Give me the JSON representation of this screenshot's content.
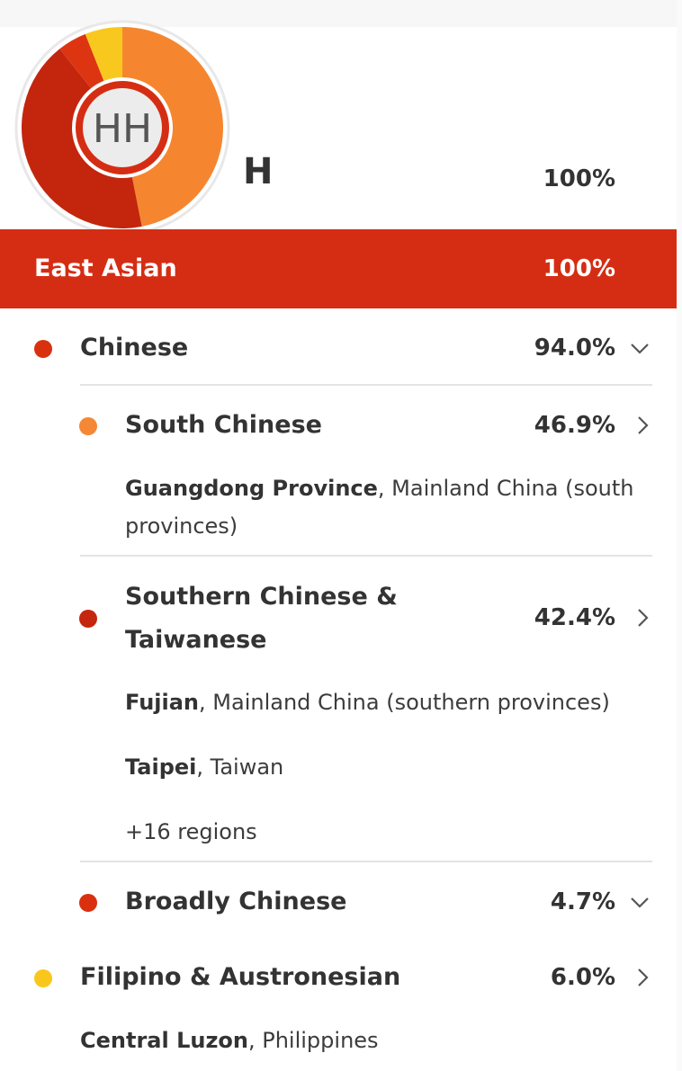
{
  "profile": {
    "initials": "HH",
    "name": "H",
    "percent": "100%",
    "ring_colors": {
      "south": "#f5862f",
      "southern_taiwanese": "#c3260d",
      "broadly": "#dd3512",
      "filipino": "#f9c81e",
      "ring_bg": "#e8e8e8"
    },
    "ring_fractions": {
      "south": 0.469,
      "southern_taiwanese": 0.424,
      "broadly": 0.047,
      "filipino": 0.06
    }
  },
  "banner": {
    "label": "East Asian",
    "percent": "100%",
    "color": "#d52d13"
  },
  "rows": {
    "chinese": {
      "label": "Chinese",
      "percent": "94.0%",
      "dot": "#d9310f",
      "chevron": "chevron-down-icon"
    },
    "south_chinese": {
      "label": "South Chinese",
      "percent": "46.9%",
      "dot": "#f48836",
      "chevron": "chevron-right-icon",
      "region1_bold": "Guangdong Province",
      "region1_rest": ", Mainland China (south",
      "region1_line2": "provinces)"
    },
    "southern_taiwanese": {
      "label_line1": "Southern Chinese &",
      "label_line2": "Taiwanese",
      "percent": "42.4%",
      "dot": "#c5260e",
      "chevron": "chevron-right-icon",
      "region1_bold": "Fujian",
      "region1_rest": ", Mainland China (southern provinces)",
      "region2_bold": "Taipei",
      "region2_rest": ", Taiwan",
      "more": "+16 regions"
    },
    "broadly_chinese": {
      "label": "Broadly Chinese",
      "percent": "4.7%",
      "dot": "#d9310f",
      "chevron": "chevron-down-icon"
    },
    "filipino": {
      "label": "Filipino & Austronesian",
      "percent": "6.0%",
      "dot": "#f9c71c",
      "chevron": "chevron-right-icon",
      "region1_bold": "Central Luzon",
      "region1_rest": ", Philippines"
    }
  }
}
